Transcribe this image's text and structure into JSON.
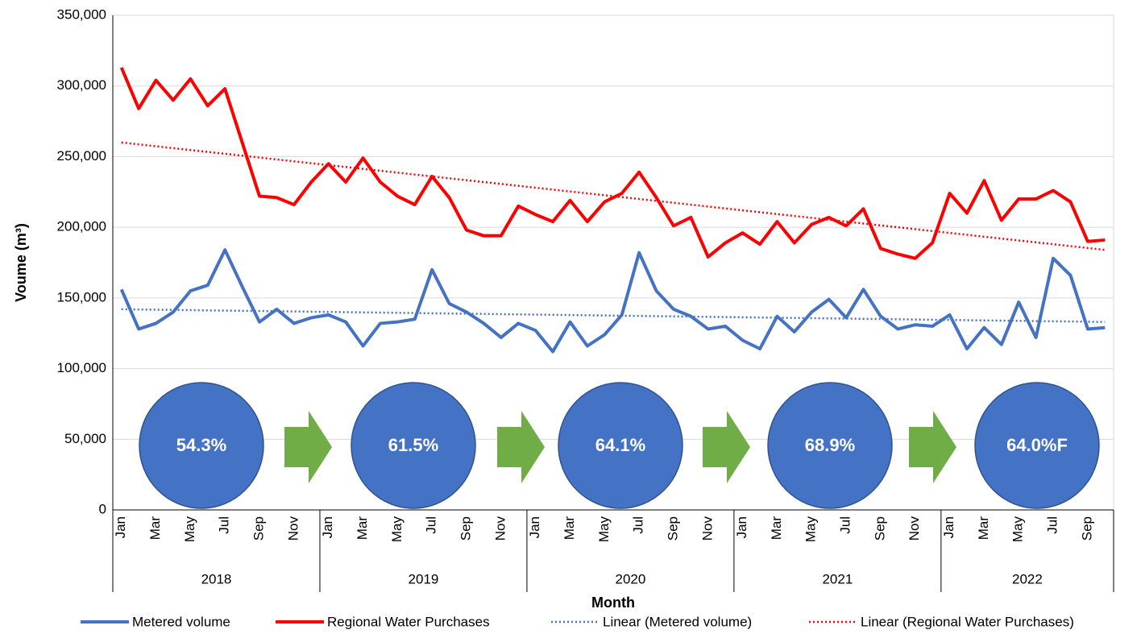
{
  "chart_data": {
    "type": "line",
    "x_axis_label": "Month",
    "y_axis_label": "Voume (m³)",
    "categories": [
      "Jan",
      null,
      "Mar",
      null,
      "May",
      null,
      "Jul",
      null,
      "Sep",
      null,
      "Nov",
      null,
      "Jan",
      null,
      "Mar",
      null,
      "May",
      null,
      "Jul",
      null,
      "Sep",
      null,
      "Nov",
      null,
      "Jan",
      null,
      "Mar",
      null,
      "May",
      null,
      "Jul",
      null,
      "Sep",
      null,
      "Nov",
      null,
      "Jan",
      null,
      "Mar",
      null,
      "May",
      null,
      "Jul",
      null,
      "Sep",
      null,
      "Nov",
      null,
      "Jan",
      null,
      "Mar",
      null,
      "May",
      null,
      "Jul",
      null,
      "Sep",
      null
    ],
    "groups": [
      {
        "label": "2018",
        "span": 12
      },
      {
        "label": "2019",
        "span": 12
      },
      {
        "label": "2020",
        "span": 12
      },
      {
        "label": "2021",
        "span": 12
      },
      {
        "label": "2022",
        "span": 10
      }
    ],
    "series": [
      {
        "name": "Metered volume",
        "color": "#4472c4",
        "values": [
          156000,
          128000,
          132000,
          140000,
          155000,
          159000,
          184000,
          158000,
          133000,
          142000,
          132000,
          136000,
          138000,
          133000,
          116000,
          132000,
          133000,
          135000,
          170000,
          146000,
          140000,
          132000,
          122000,
          132000,
          127000,
          112000,
          133000,
          116000,
          124000,
          138000,
          182000,
          155000,
          142000,
          137000,
          128000,
          130000,
          120000,
          114000,
          137000,
          126000,
          140000,
          149000,
          136000,
          156000,
          137000,
          128000,
          131000,
          130000,
          138000,
          114000,
          129000,
          117000,
          147000,
          122000,
          178000,
          166000,
          128000,
          129000
        ]
      },
      {
        "name": "Regional Water Purchases",
        "color": "#ff0000",
        "values": [
          313000,
          284000,
          304000,
          290000,
          305000,
          286000,
          298000,
          260000,
          222000,
          221000,
          216000,
          232000,
          245000,
          232000,
          249000,
          232000,
          222000,
          216000,
          236000,
          221000,
          198000,
          194000,
          194000,
          215000,
          209000,
          204000,
          219000,
          204000,
          218000,
          224000,
          239000,
          221000,
          201000,
          207000,
          179000,
          189000,
          196000,
          188000,
          204000,
          189000,
          202000,
          207000,
          201000,
          213000,
          185000,
          181000,
          178000,
          189000,
          224000,
          210000,
          233000,
          205000,
          220000,
          220000,
          226000,
          218000,
          190000,
          191000
        ]
      }
    ],
    "trendlines": [
      {
        "name": "Linear (Metered volume)",
        "color": "#4472c4",
        "style": "dotted",
        "values": [
          142000,
          133000
        ]
      },
      {
        "name": "Linear (Regional Water Purchases)",
        "color": "#ff0000",
        "style": "dotted",
        "values": [
          260000,
          184000
        ]
      }
    ],
    "annotations": [
      "54.3%",
      "61.5%",
      "64.1%",
      "68.9%",
      "64.0%F"
    ],
    "ylim": [
      0,
      350000
    ],
    "yticks": [
      0,
      {
        "value": 50000,
        "label": "50,000"
      },
      {
        "value": 100000,
        "label": "100,000"
      },
      {
        "value": 150000,
        "label": "150,000"
      },
      {
        "value": 200000,
        "label": "200,000"
      },
      {
        "value": 250000,
        "label": "250,000"
      },
      {
        "value": 300000,
        "label": "300,000"
      },
      {
        "value": 350000,
        "label": "350,000"
      }
    ],
    "grid": true,
    "legend": "bottom"
  }
}
